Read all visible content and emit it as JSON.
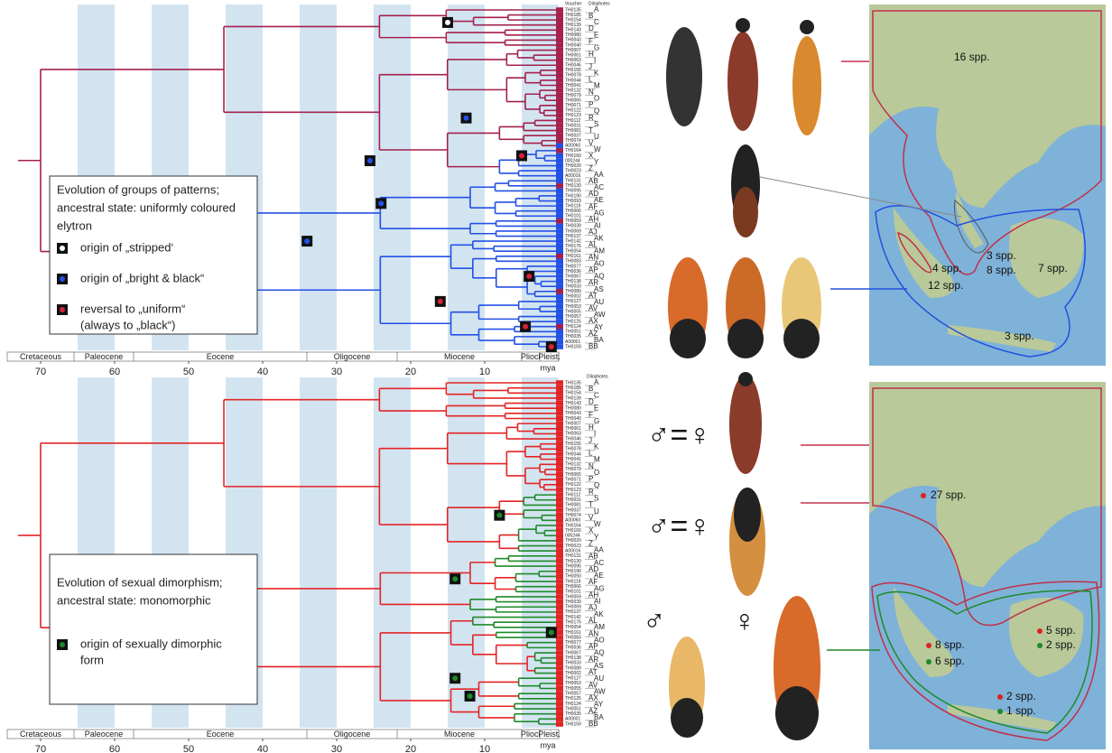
{
  "panels": [
    {
      "header": [
        "Voucher",
        "Dilophotes"
      ],
      "legend": {
        "title_lines": [
          "Evolution of groups of patterns;",
          "ancestral state: uniformly coloured",
          "elytron"
        ],
        "items": [
          [
            "origin of „stripped‘"
          ],
          [
            "origin of „bright & black“"
          ],
          [
            "reversal to „uniform“",
            "(always to „black“)"
          ]
        ]
      }
    },
    {
      "header": [
        "Dilophotes"
      ],
      "legend": {
        "title_lines": [
          "Evolution of sexual dimorphism;",
          "ancestral state: monomorphic"
        ],
        "items": [
          [
            "origin of sexually dimorphic",
            "form"
          ]
        ]
      }
    }
  ],
  "tree": {
    "vouchers": [
      "TH0135",
      "TH0185",
      "TH0154",
      "TH0139",
      "TH0143",
      "TH0080",
      "TH0043",
      "TH0040",
      "TH0007",
      "TH0061",
      "TH0063",
      "TH0046",
      "TH0155",
      "TH0078",
      "TH0044",
      "TH0041",
      "TH0132",
      "TH0079",
      "TH0065",
      "TH0071",
      "TH0122",
      "TH0123",
      "TH0112",
      "TH0031",
      "TH0081",
      "TH0037",
      "TH0074",
      "A00060",
      "TH0164",
      "TH0160",
      "000244",
      "TH0020",
      "TH0023",
      "A00016",
      "TH0131",
      "TH0130",
      "TH0095",
      "TH0190",
      "TH0093",
      "TH0119",
      "TH0066",
      "TH0101",
      "TH0059",
      "TH0039",
      "TH0069",
      "TH0137",
      "TH0142",
      "TH0176",
      "TH0054",
      "TH0161",
      "TH0083",
      "TH0077",
      "TH0036",
      "TH0067",
      "TH0138",
      "TH0033",
      "TH0089",
      "TH0002",
      "TH0127",
      "TH0053",
      "TH0055",
      "TH0057",
      "TH0125",
      "TH0124",
      "TH0051",
      "TH0035",
      "A00001",
      "TH0159"
    ],
    "clades": [
      "A",
      "B",
      "C",
      "D",
      "E",
      "F",
      "G",
      "H",
      "I",
      "J",
      "K",
      "L",
      "M",
      "N",
      "O",
      "P",
      "Q",
      "R",
      "S",
      "T",
      "U",
      "V",
      "W",
      "X",
      "Y",
      "Z",
      "AA",
      "AB",
      "AC",
      "AD",
      "AE",
      "AF",
      "AG",
      "AH",
      "AI",
      "AJ",
      "AK",
      "AL",
      "AM",
      "AN",
      "AO",
      "AP",
      "AQ",
      "AR",
      "AS",
      "AT",
      "AU",
      "AV",
      "AW",
      "AX",
      "AY",
      "AZ",
      "BA",
      "BB"
    ]
  },
  "time_axis": {
    "epochs": [
      "Cretaceous",
      "Paleocene",
      "Eocene",
      "Oligocene",
      "Miocene",
      "Plioc.",
      "Pleist."
    ],
    "ticks": [
      70,
      60,
      50,
      40,
      30,
      20,
      10
    ],
    "unit": "mya"
  },
  "maps": [
    {
      "labels": [
        "16 spp.",
        "3 spp.",
        "8 spp.",
        "4 spp.",
        "12 spp.",
        "7 spp.",
        "3 spp."
      ]
    },
    {
      "labels": [
        "27 spp.",
        "8 spp.",
        "6 spp.",
        "5 spp.",
        "2 spp.",
        "2 spp.",
        "1 spp."
      ]
    }
  ],
  "sex_symbols": [
    "♂=♀",
    "♂=♀",
    "♂",
    "♀"
  ]
}
